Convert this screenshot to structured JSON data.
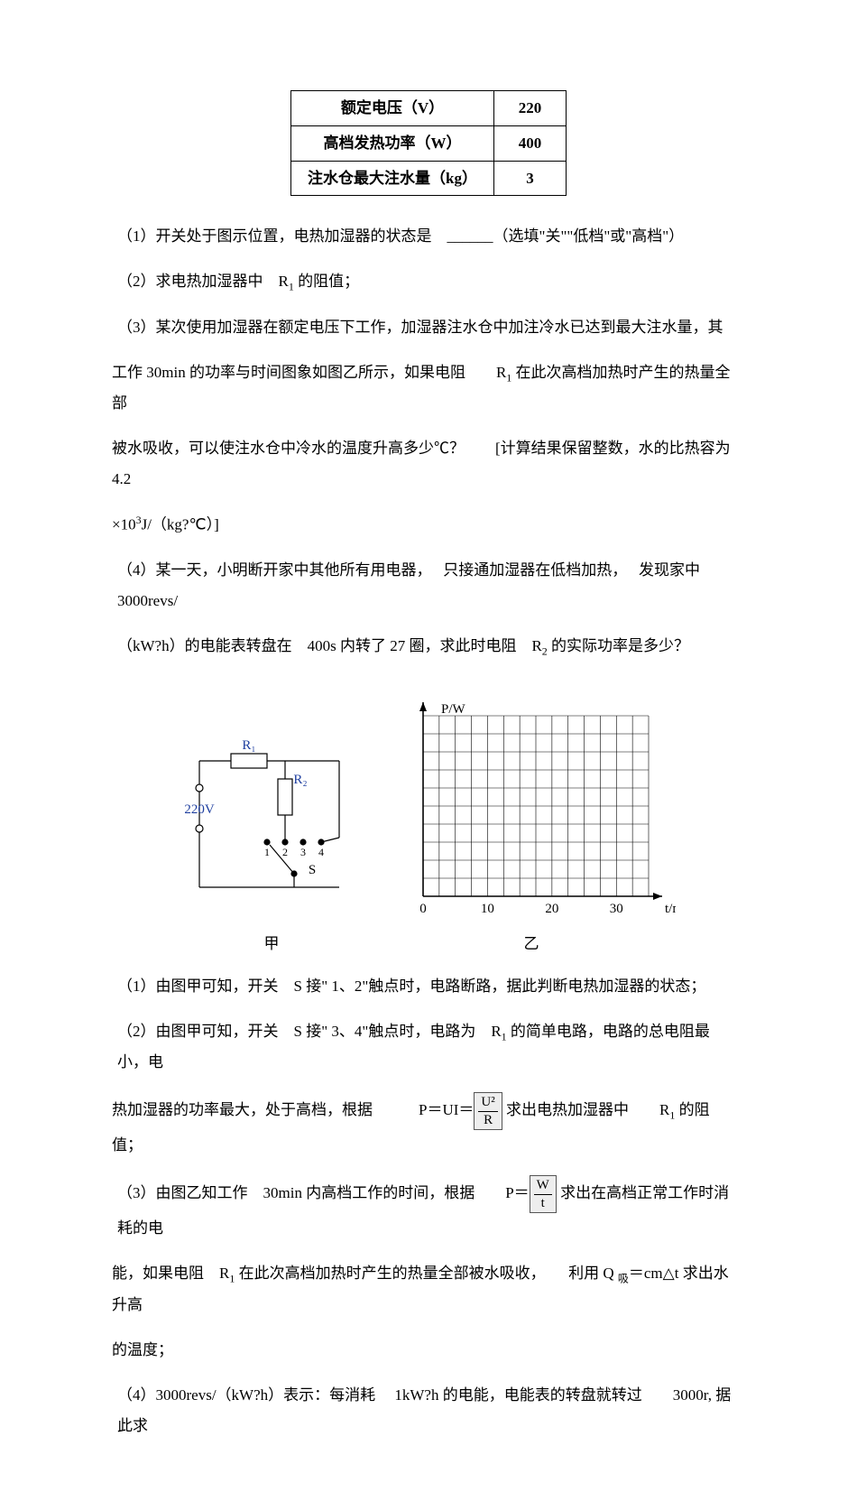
{
  "spec_table": {
    "rows": [
      {
        "label": "额定电压（V）",
        "value": "220"
      },
      {
        "label": "高档发热功率（W）",
        "value": "400"
      },
      {
        "label": "注水仓最大注水量（kg）",
        "value": "3"
      }
    ],
    "border_color": "#000000",
    "cell_fontsize": 17,
    "cell_fontweight": "bold"
  },
  "questions": {
    "q1": "（1）开关处于图示位置，电热加湿器的状态是　______（选填\"关\"\"低档\"或\"高档\"）",
    "q2_pre": "（2）求电热加湿器中　R",
    "q2_sub": "1",
    "q2_post": " 的阻值；",
    "q3_line1": "（3）某次使用加湿器在额定电压下工作，加湿器注水仓中加注冷水已达到最大注水量，其",
    "q3_line2_a": "工作 30min 的功率与时间图象如图乙所示，如果电阻　　R",
    "q3_line2_sub": "1",
    "q3_line2_b": " 在此次高档加热时产生的热量全部",
    "q3_line3": "被水吸收，可以使注水仓中冷水的温度升高多少℃？　　[计算结果保留整数，水的比热容为　　4.2",
    "q3_line4_a": "×10",
    "q3_line4_sup": "3",
    "q3_line4_b": "J/（kg?℃）]",
    "q4_line1": "（4）某一天，小明断开家中其他所有用电器，　 只接通加湿器在低档加热，　 发现家中 3000revs/",
    "q4_line2_a": "（kW?h）的电能表转盘在　400s 内转了 27 圈，求此时电阻　R",
    "q4_line2_sub": "2",
    "q4_line2_b": " 的实际功率是多少？"
  },
  "circuit": {
    "source_label": "220V",
    "r1_label": "R₁",
    "r2_label": "R₂",
    "switch_label": "S",
    "contacts": [
      "1",
      "2",
      "3",
      "4"
    ],
    "caption": "甲",
    "line_color": "#000000",
    "text_color": "#2040a0",
    "line_width": 1.2
  },
  "graph": {
    "type": "line",
    "xlabel": "t/min",
    "ylabel": "P/W",
    "xlim": [
      0,
      35
    ],
    "ylim": [
      0,
      10
    ],
    "xticks": [
      0,
      10,
      20,
      30
    ],
    "grid_color": "#000000",
    "axis_color": "#000000",
    "line_color": "#000000",
    "line_width": 1.2,
    "caption": "乙",
    "grid_cols": 14,
    "grid_rows": 10
  },
  "answers": {
    "a1": "（1）由图甲可知，开关　S 接\" 1、2\"触点时，电路断路，据此判断电热加湿器的状态；",
    "a2_pre": "（2）由图甲可知，开关　S 接\" 3、4\"触点时，电路为　R",
    "a2_sub": "1",
    "a2_post": " 的简单电路，电路的总电阻最小，电",
    "a2b_pre": "热加湿器的功率最大，处于高档，根据　　　P＝UI＝",
    "a2b_frac_num": "U²",
    "a2b_frac_den": "R",
    "a2b_mid": " 求出电热加湿器中　　R",
    "a2b_sub": "1",
    "a2b_post": " 的阻值；",
    "a3_pre": "（3）由图乙知工作　30min 内高档工作的时间，根据　　P＝",
    "a3_frac_num": "W",
    "a3_frac_den": "t",
    "a3_post": " 求出在高档正常工作时消耗的电",
    "a3b_pre": "能，如果电阻　R",
    "a3b_sub": "1",
    "a3b_mid": " 在此次高档加热时产生的热量全部被水吸收，　　利用 Q ",
    "a3b_sub2": "吸",
    "a3b_post": "＝cm△t 求出水升高",
    "a3c": "的温度；",
    "a4": "（4）3000revs/（kW?h）表示：每消耗　 1kW?h 的电能，电能表的转盘就转过　　3000r, 据此求"
  }
}
